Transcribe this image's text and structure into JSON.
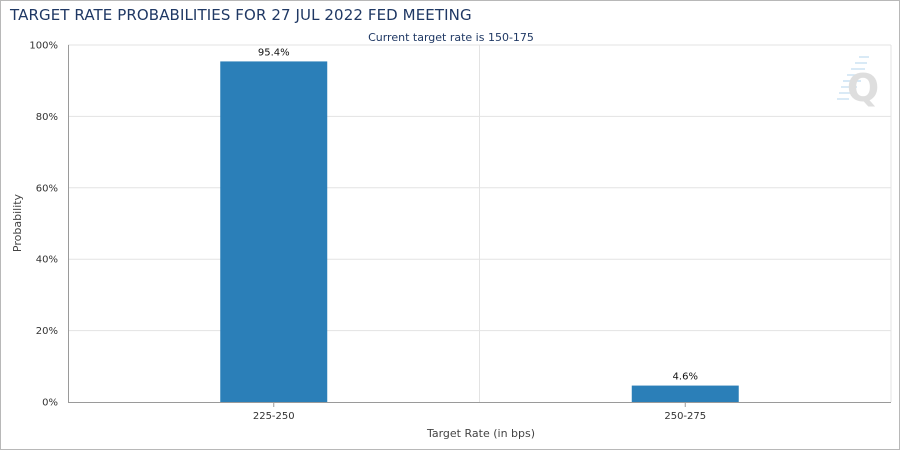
{
  "chart_data": {
    "type": "bar",
    "title": "TARGET RATE PROBABILITIES FOR 27 JUL 2022 FED MEETING",
    "subtitle": "Current target rate is 150-175",
    "categories": [
      "225-250",
      "250-275"
    ],
    "values": [
      95.4,
      4.6
    ],
    "data_labels": [
      "95.4%",
      "4.6%"
    ],
    "xlabel": "Target Rate (in bps)",
    "ylabel": "Probability",
    "ylim": [
      0,
      100
    ],
    "yticks": [
      0,
      20,
      40,
      60,
      80,
      100
    ],
    "ytick_labels": [
      "0%",
      "20%",
      "40%",
      "60%",
      "80%",
      "100%"
    ],
    "grid": true,
    "bar_color": "#2b7fb8",
    "grid_color": "#e3e3e3"
  }
}
